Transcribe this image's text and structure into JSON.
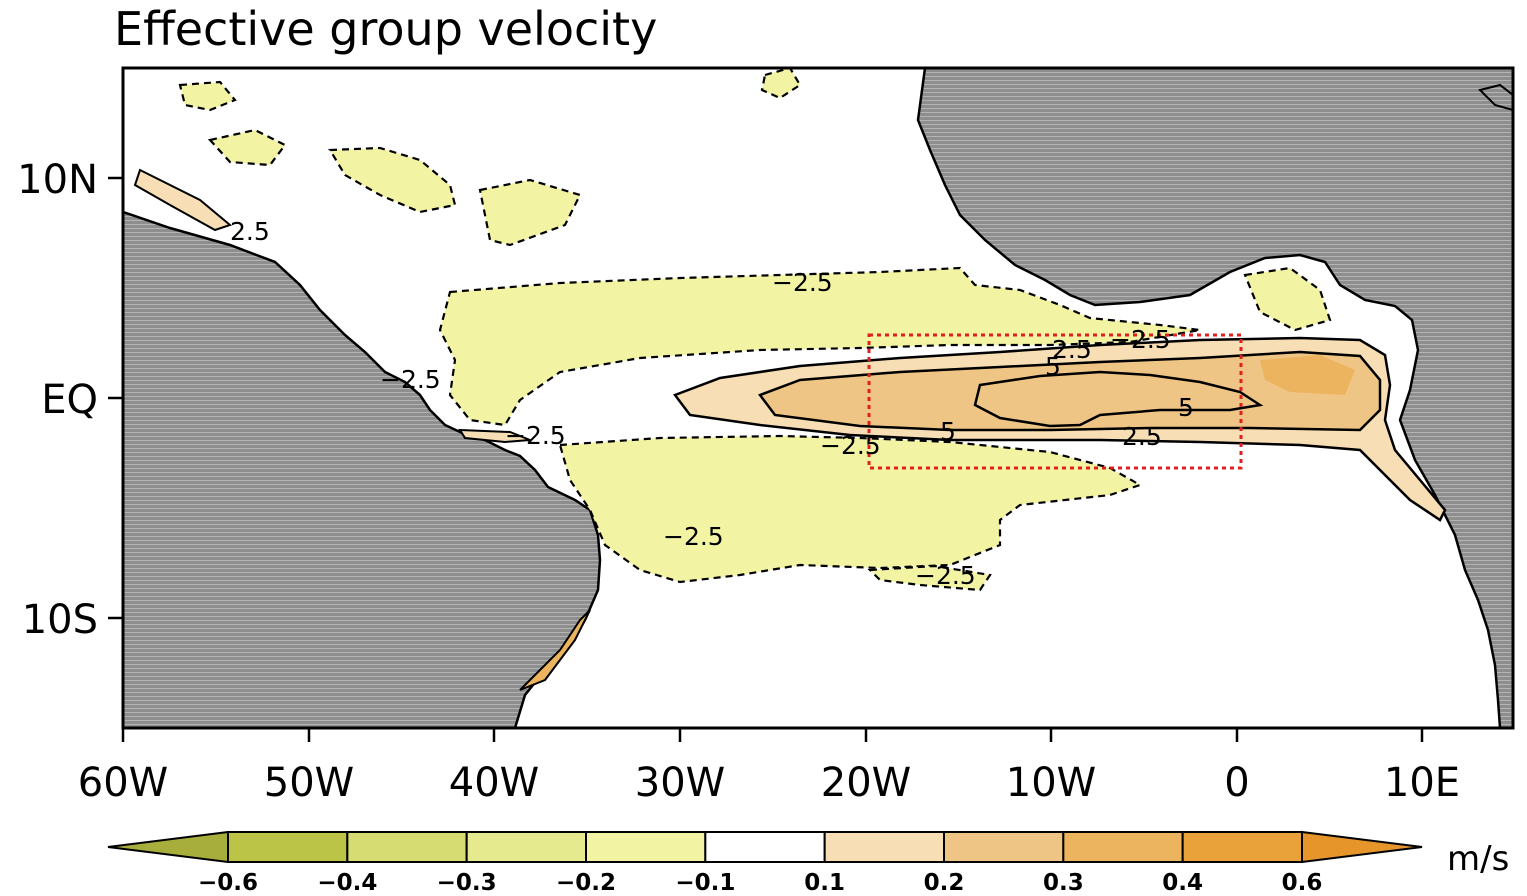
{
  "title": "Effective group velocity",
  "chart_data": {
    "type": "heatmap",
    "title": "Effective group velocity",
    "x_ticks": [
      "60W",
      "50W",
      "40W",
      "30W",
      "20W",
      "10W",
      "0",
      "10E"
    ],
    "y_ticks": [
      "10N",
      "EQ",
      "10S"
    ],
    "xlim": [
      -60,
      15
    ],
    "ylim": [
      -15,
      15
    ],
    "colorbar": {
      "units": "m/s",
      "levels": [
        "−0.6",
        "−0.4",
        "−0.3",
        "−0.2",
        "−0.1",
        "0.1",
        "0.2",
        "0.3",
        "0.4",
        "0.6"
      ],
      "colors": [
        "#a8ae3c",
        "#bcc447",
        "#d6dc72",
        "#e6ea8e",
        "#f2f4a4",
        "#ffffff",
        "#f7deb4",
        "#efc586",
        "#ecb45e",
        "#e9a23a",
        "#e6952a"
      ]
    },
    "contour_labels": [
      "2.5",
      "−2.5",
      "−2.5",
      "−2.5",
      "−2.5",
      "−2.5",
      "−2.5",
      "−2.5",
      "2.5",
      "5",
      "5",
      "5",
      "2.5",
      "−2.5"
    ],
    "box": {
      "lon": [
        -20,
        0
      ],
      "lat": [
        -3,
        3
      ]
    }
  }
}
